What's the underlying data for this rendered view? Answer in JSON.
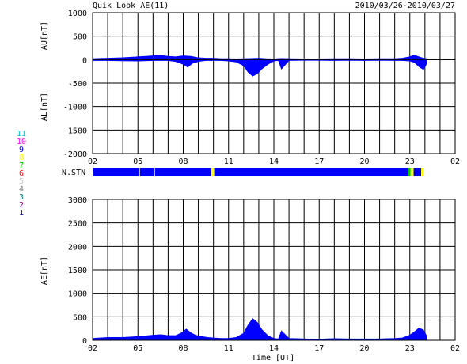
{
  "header": {
    "title": "Quik Look AE(11)",
    "date_range": "2010/03/26-2010/03/27"
  },
  "nstn_label": "N.STN",
  "xlabel": "Time [UT]",
  "legend": [
    {
      "label": "11",
      "color": "#00c8c8"
    },
    {
      "label": "10",
      "color": "#ff00ff"
    },
    {
      "label": "9",
      "color": "#0000ff"
    },
    {
      "label": "8",
      "color": "#ffff00"
    },
    {
      "label": "7",
      "color": "#00c800"
    },
    {
      "label": "6",
      "color": "#ff0000"
    },
    {
      "label": "5",
      "color": "#c8c8c8"
    },
    {
      "label": "4",
      "color": "#808080"
    },
    {
      "label": "3",
      "color": "#008080"
    },
    {
      "label": "2",
      "color": "#800080"
    },
    {
      "label": "1",
      "color": "#000080"
    }
  ],
  "chart_data": [
    {
      "type": "area",
      "panel": "AU/AL",
      "ylabel_top": "AU[nT]",
      "ylabel_bottom": "AL[nT]",
      "ylim": [
        -2000,
        1000
      ],
      "yticks": [
        1000,
        500,
        0,
        -500,
        -1000,
        -1500,
        -2000
      ],
      "xlim": [
        2,
        26
      ],
      "xtick_labels": [
        "02",
        "05",
        "08",
        "11",
        "14",
        "17",
        "20",
        "23",
        "02"
      ],
      "grid": true,
      "fill_color": "#0000ff",
      "series": [
        {
          "values_kind": "AU",
          "x": [
            2,
            3,
            4,
            5,
            6,
            6.5,
            7,
            7.5,
            8,
            8.5,
            9,
            9.5,
            10,
            10.5,
            11,
            11.5,
            12,
            12.5,
            13,
            13.5,
            14,
            14.5,
            15,
            16,
            17,
            18,
            19,
            20,
            21,
            22,
            22.5,
            23,
            23.3,
            23.5,
            23.8,
            24.1
          ],
          "y": [
            20,
            30,
            40,
            60,
            80,
            90,
            70,
            60,
            80,
            70,
            40,
            30,
            30,
            20,
            20,
            15,
            20,
            25,
            30,
            20,
            15,
            25,
            20,
            15,
            15,
            20,
            20,
            15,
            20,
            20,
            30,
            60,
            100,
            70,
            40,
            20
          ]
        },
        {
          "values_kind": "AL",
          "x": [
            2,
            3,
            4,
            5,
            6,
            6.5,
            7,
            7.5,
            8,
            8.3,
            8.6,
            9,
            9.5,
            10,
            10.5,
            11,
            11.5,
            12,
            12.3,
            12.6,
            12.9,
            13.2,
            13.6,
            14,
            14.3,
            14.5,
            15,
            16,
            17,
            18,
            19,
            20,
            21,
            22,
            22.5,
            23,
            23.3,
            23.6,
            23.9,
            24.1
          ],
          "y": [
            -20,
            -20,
            -25,
            -30,
            -20,
            -20,
            -20,
            -40,
            -100,
            -160,
            -80,
            -40,
            -20,
            -20,
            -20,
            -30,
            -50,
            -130,
            -270,
            -350,
            -300,
            -200,
            -100,
            -30,
            -20,
            -200,
            -20,
            -15,
            -15,
            -20,
            -15,
            -20,
            -15,
            -20,
            -20,
            -30,
            -60,
            -150,
            -210,
            -100
          ]
        }
      ]
    },
    {
      "type": "area",
      "panel": "AE",
      "ylabel": "AE[nT]",
      "ylim": [
        0,
        3000
      ],
      "yticks": [
        3000,
        2500,
        2000,
        1500,
        1000,
        500,
        0
      ],
      "xlim": [
        2,
        26
      ],
      "xtick_labels": [
        "02",
        "05",
        "08",
        "11",
        "14",
        "17",
        "20",
        "23",
        "02"
      ],
      "grid": true,
      "fill_color": "#0000ff",
      "series": [
        {
          "values_kind": "AE",
          "x": [
            2,
            3,
            4,
            5,
            6,
            6.5,
            7,
            7.5,
            7.9,
            8.2,
            8.5,
            8.8,
            9.2,
            9.6,
            10,
            10.5,
            11,
            11.5,
            12,
            12.3,
            12.6,
            12.9,
            13.2,
            13.6,
            14,
            14.3,
            14.5,
            15,
            16,
            17,
            18,
            19,
            20,
            21,
            22,
            22.5,
            23,
            23.3,
            23.6,
            23.9,
            24.1
          ],
          "y": [
            40,
            60,
            60,
            80,
            110,
            120,
            100,
            100,
            160,
            240,
            160,
            110,
            80,
            60,
            50,
            40,
            40,
            60,
            150,
            330,
            460,
            380,
            230,
            100,
            40,
            30,
            200,
            40,
            30,
            25,
            35,
            30,
            30,
            30,
            40,
            50,
            110,
            180,
            260,
            220,
            100
          ]
        }
      ]
    },
    {
      "type": "table",
      "panel": "N.STN",
      "description_kind": "station count bar",
      "segments": [
        {
          "from": 2,
          "to": 5.1,
          "level": 9
        },
        {
          "from": 5.1,
          "to": 6.1,
          "level": 9
        },
        {
          "from": 6.1,
          "to": 9.85,
          "level": 9
        },
        {
          "from": 9.85,
          "to": 10.05,
          "level": 8
        },
        {
          "from": 10.05,
          "to": 22.9,
          "level": 9
        },
        {
          "from": 22.9,
          "to": 23.05,
          "level": 7
        },
        {
          "from": 23.05,
          "to": 23.25,
          "level": 8
        },
        {
          "from": 23.25,
          "to": 23.75,
          "level": 9
        },
        {
          "from": 23.75,
          "to": 23.9,
          "level": 8
        }
      ]
    }
  ]
}
